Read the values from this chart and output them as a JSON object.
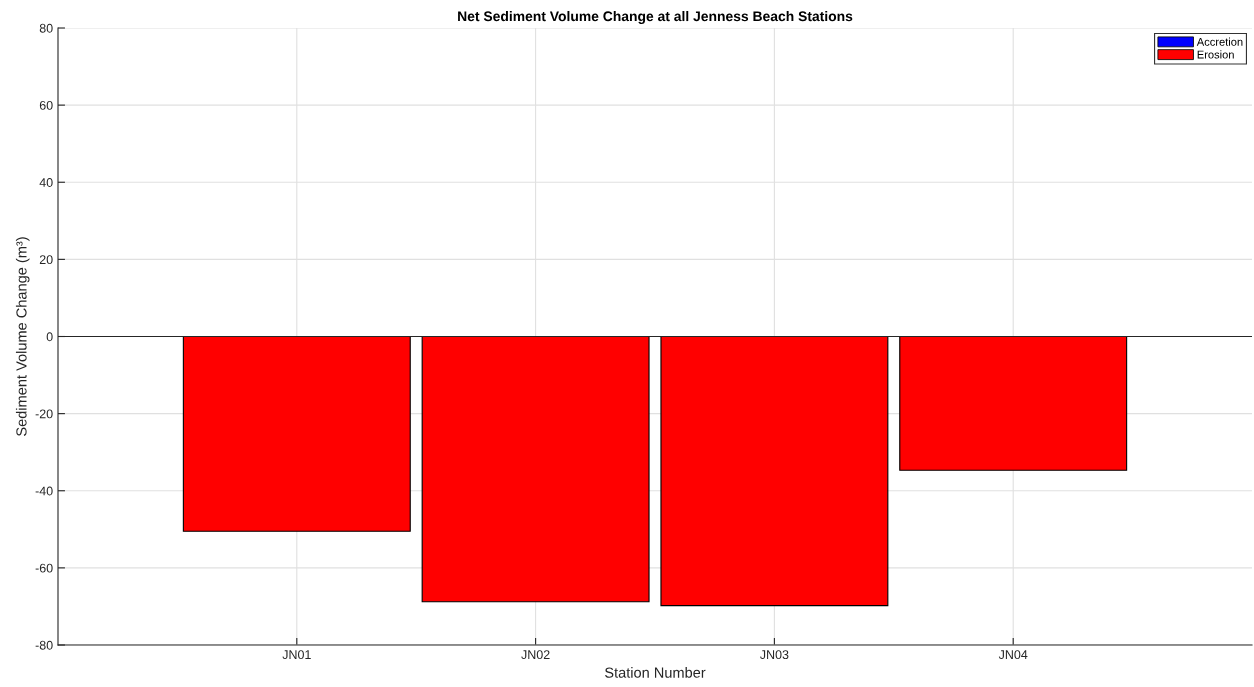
{
  "chart_data": {
    "type": "bar",
    "title": "Net Sediment Volume Change at all Jenness Beach Stations",
    "xlabel": "Station Number",
    "ylabel": "Sediment Volume Change (m³)",
    "categories": [
      "JN01",
      "JN02",
      "JN03",
      "JN04"
    ],
    "series": [
      {
        "name": "Accretion",
        "color": "#0000ff",
        "values": [
          null,
          null,
          null,
          null
        ]
      },
      {
        "name": "Erosion",
        "color": "#ff0000",
        "values": [
          -50.5,
          -68.8,
          -69.8,
          -34.7
        ]
      }
    ],
    "ylim": [
      -80,
      80
    ],
    "yticks": [
      -80,
      -60,
      -40,
      -20,
      0,
      20,
      40,
      60,
      80
    ],
    "ref_lines": [
      {
        "axis": "y",
        "value": 0,
        "color": "#262626"
      }
    ],
    "grid": true,
    "legend": "top right"
  }
}
